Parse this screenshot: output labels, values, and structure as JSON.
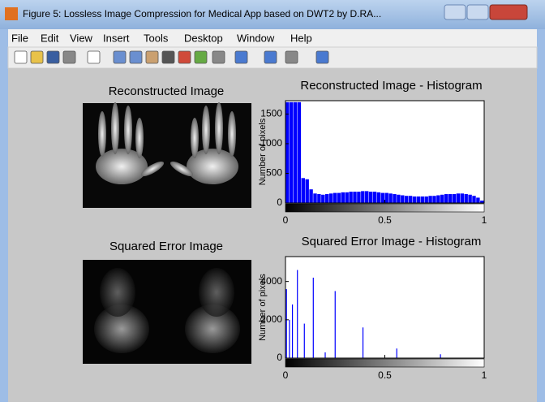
{
  "window": {
    "title": "Figure 5: Lossless Image Compression for Medical App based on DWT2 by D.RA..."
  },
  "menu": [
    "File",
    "Edit",
    "View",
    "Insert",
    "Tools",
    "Desktop",
    "Window",
    "Help"
  ],
  "images": [
    {
      "title": "Reconstructed Image"
    },
    {
      "title": "Squared Error Image"
    }
  ],
  "chart_data": [
    {
      "type": "histogram",
      "title": "Reconstructed Image - Histogram",
      "y_label": "Number of pixels",
      "color": "#0000ff",
      "bins": [
        0,
        0.02,
        0.04,
        0.06,
        0.08,
        0.1,
        0.12,
        0.14,
        0.16,
        0.18,
        0.2,
        0.22,
        0.24,
        0.26,
        0.28,
        0.3,
        0.32,
        0.34,
        0.36,
        0.38,
        0.4,
        0.42,
        0.44,
        0.46,
        0.48,
        0.5,
        0.52,
        0.54,
        0.56,
        0.58,
        0.6,
        0.62,
        0.64,
        0.66,
        0.68,
        0.7,
        0.72,
        0.74,
        0.76,
        0.78,
        0.8,
        0.82,
        0.84,
        0.86,
        0.88,
        0.9,
        0.92,
        0.94,
        0.96,
        0.98,
        1
      ],
      "values": [
        1700,
        1700,
        1700,
        1700,
        420,
        400,
        230,
        160,
        150,
        140,
        150,
        160,
        170,
        170,
        180,
        180,
        190,
        190,
        190,
        200,
        200,
        190,
        190,
        180,
        170,
        170,
        160,
        150,
        140,
        130,
        120,
        120,
        110,
        110,
        110,
        110,
        120,
        120,
        130,
        140,
        150,
        150,
        150,
        160,
        160,
        150,
        140,
        120,
        90,
        40
      ],
      "xlim": [
        0,
        1
      ],
      "xticks": [
        0,
        0.5,
        1
      ],
      "ylim": [
        0,
        1725
      ],
      "yticks": [
        0,
        500,
        1000,
        1500
      ]
    },
    {
      "type": "spike",
      "title": "Squared Error Image - Histogram",
      "y_label": "Number of pixels",
      "color": "#0000ff",
      "x": [
        0.005,
        0.02,
        0.035,
        0.06,
        0.095,
        0.14,
        0.2,
        0.25,
        0.39,
        0.56,
        0.78
      ],
      "values": [
        3600,
        2000,
        2800,
        4600,
        1800,
        4200,
        300,
        3500,
        1600,
        500,
        200
      ],
      "xlim": [
        0,
        1
      ],
      "xticks": [
        0,
        0.5,
        1
      ],
      "ylim": [
        0,
        5300
      ],
      "yticks": [
        0,
        2000,
        4000
      ]
    }
  ]
}
